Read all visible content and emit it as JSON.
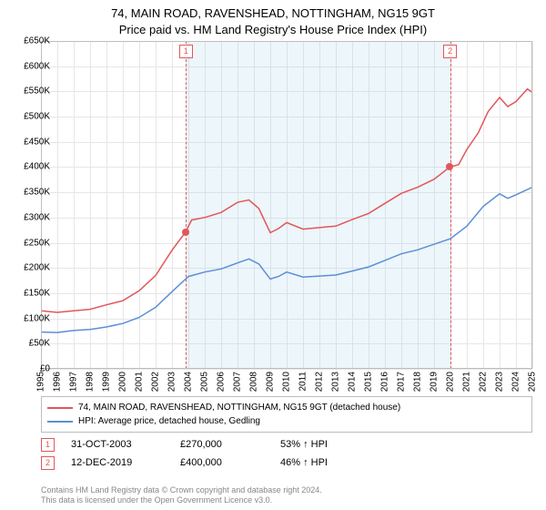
{
  "title_line1": "74, MAIN ROAD, RAVENSHEAD, NOTTINGHAM, NG15 9GT",
  "title_line2": "Price paid vs. HM Land Registry's House Price Index (HPI)",
  "chart": {
    "type": "line",
    "background_color": "#ffffff",
    "grid_color": "#e6e6e6",
    "border_color": "#bdbdbd",
    "ylim": [
      0,
      650000
    ],
    "ytick_step": 50000,
    "ytick_labels": [
      "£0",
      "£50K",
      "£100K",
      "£150K",
      "£200K",
      "£250K",
      "£300K",
      "£350K",
      "£400K",
      "£450K",
      "£500K",
      "£550K",
      "£600K",
      "£650K"
    ],
    "xlim": [
      1995,
      2025
    ],
    "xtick_years": [
      1995,
      1996,
      1997,
      1998,
      1999,
      2000,
      2001,
      2002,
      2003,
      2004,
      2005,
      2006,
      2007,
      2008,
      2009,
      2010,
      2011,
      2012,
      2013,
      2014,
      2015,
      2016,
      2017,
      2018,
      2019,
      2020,
      2021,
      2022,
      2023,
      2024,
      2025
    ],
    "shaded_ranges": [
      {
        "from": 2003.83,
        "to": 2019.95
      }
    ],
    "marker_boxes": [
      {
        "label": "1",
        "x": 2003.83
      },
      {
        "label": "2",
        "x": 2019.95
      }
    ],
    "series": [
      {
        "name": "property",
        "color": "#e15759",
        "legend": "74, MAIN ROAD, RAVENSHEAD, NOTTINGHAM, NG15 9GT (detached house)",
        "points": [
          [
            1995,
            115000
          ],
          [
            1996,
            112000
          ],
          [
            1997,
            115000
          ],
          [
            1998,
            118000
          ],
          [
            1999,
            127000
          ],
          [
            2000,
            135000
          ],
          [
            2001,
            155000
          ],
          [
            2002,
            185000
          ],
          [
            2003,
            235000
          ],
          [
            2003.8,
            270000
          ],
          [
            2004.2,
            295000
          ],
          [
            2005,
            300000
          ],
          [
            2006,
            310000
          ],
          [
            2007,
            330000
          ],
          [
            2007.7,
            335000
          ],
          [
            2008.3,
            318000
          ],
          [
            2009,
            270000
          ],
          [
            2009.5,
            278000
          ],
          [
            2010,
            290000
          ],
          [
            2011,
            277000
          ],
          [
            2012,
            280000
          ],
          [
            2013,
            283000
          ],
          [
            2014,
            296000
          ],
          [
            2015,
            308000
          ],
          [
            2016,
            328000
          ],
          [
            2017,
            348000
          ],
          [
            2018,
            360000
          ],
          [
            2019,
            376000
          ],
          [
            2019.95,
            400000
          ],
          [
            2020.5,
            405000
          ],
          [
            2021,
            435000
          ],
          [
            2021.7,
            468000
          ],
          [
            2022.3,
            510000
          ],
          [
            2023,
            538000
          ],
          [
            2023.5,
            520000
          ],
          [
            2024,
            530000
          ],
          [
            2024.7,
            555000
          ],
          [
            2025,
            548000
          ]
        ],
        "sale_dots": [
          {
            "x": 2003.83,
            "y": 270000
          },
          {
            "x": 2019.95,
            "y": 400000
          }
        ]
      },
      {
        "name": "hpi",
        "color": "#5b8fd6",
        "legend": "HPI: Average price, detached house, Gedling",
        "points": [
          [
            1995,
            73000
          ],
          [
            1996,
            72000
          ],
          [
            1997,
            76000
          ],
          [
            1998,
            78000
          ],
          [
            1999,
            83000
          ],
          [
            2000,
            90000
          ],
          [
            2001,
            102000
          ],
          [
            2002,
            122000
          ],
          [
            2003,
            153000
          ],
          [
            2004,
            183000
          ],
          [
            2005,
            192000
          ],
          [
            2006,
            198000
          ],
          [
            2007,
            210000
          ],
          [
            2007.7,
            218000
          ],
          [
            2008.3,
            208000
          ],
          [
            2009,
            178000
          ],
          [
            2009.5,
            183000
          ],
          [
            2010,
            192000
          ],
          [
            2011,
            182000
          ],
          [
            2012,
            184000
          ],
          [
            2013,
            186000
          ],
          [
            2014,
            194000
          ],
          [
            2015,
            202000
          ],
          [
            2016,
            215000
          ],
          [
            2017,
            228000
          ],
          [
            2018,
            236000
          ],
          [
            2019,
            247000
          ],
          [
            2020,
            258000
          ],
          [
            2021,
            283000
          ],
          [
            2022,
            322000
          ],
          [
            2023,
            347000
          ],
          [
            2023.5,
            338000
          ],
          [
            2024,
            345000
          ],
          [
            2025,
            360000
          ]
        ]
      }
    ]
  },
  "legend_title": "",
  "sales": [
    {
      "marker": "1",
      "date": "31-OCT-2003",
      "price": "£270,000",
      "pct": "53% ↑ HPI"
    },
    {
      "marker": "2",
      "date": "12-DEC-2019",
      "price": "£400,000",
      "pct": "46% ↑ HPI"
    }
  ],
  "footer_line1": "Contains HM Land Registry data © Crown copyright and database right 2024.",
  "footer_line2": "This data is licensed under the Open Government Licence v3.0."
}
